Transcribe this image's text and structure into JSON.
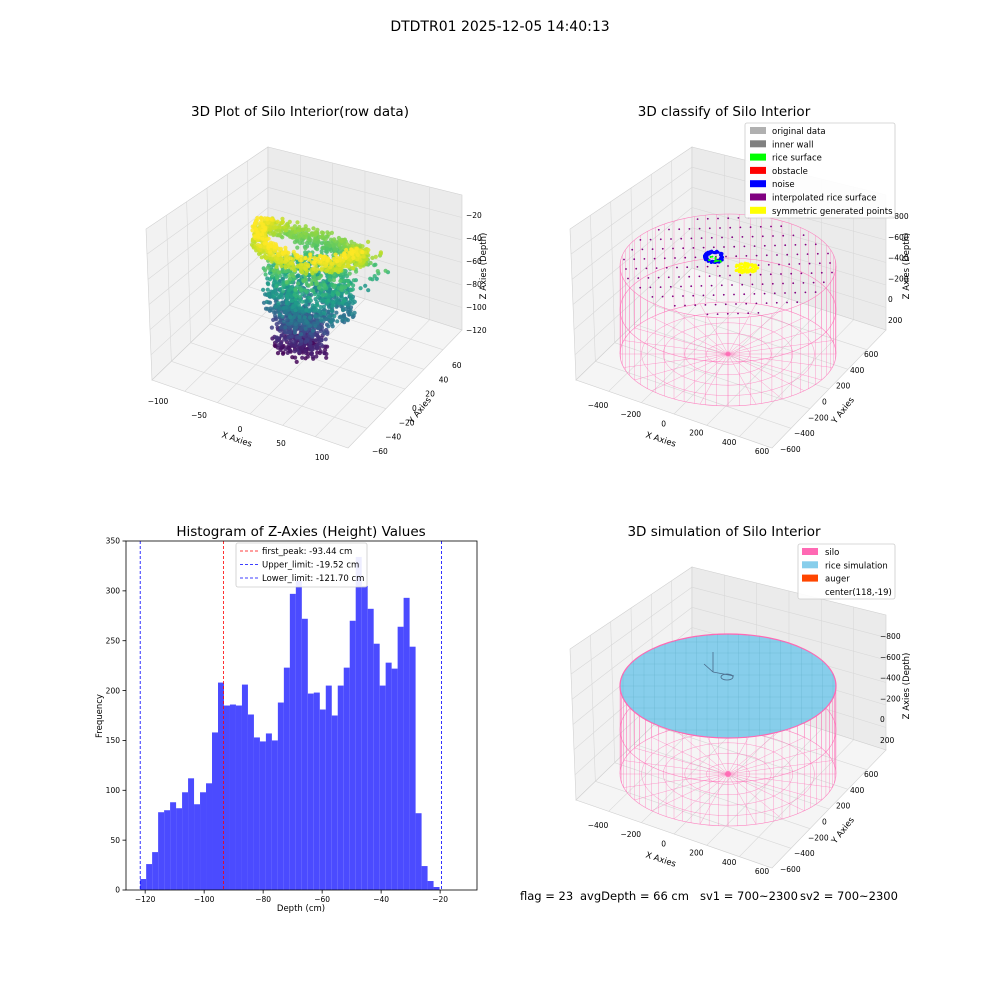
{
  "figure": {
    "suptitle": "DTDTR01 2025-12-05 14:40:13",
    "status": {
      "flag": "flag = 23",
      "avg_depth": "avgDepth = 66 cm",
      "sv1": "sv1 = 700~2300",
      "sv2": "sv2 = 700~2300"
    },
    "colors": {
      "histogram": "#4b4bff",
      "first_peak_line": "#ff0000",
      "limit_lines": "#0000ff",
      "silo_mesh": "#ff69b4",
      "rice_simulation": "#87ceeb"
    }
  },
  "chart_data": [
    {
      "type": "scatter",
      "projection": "3d",
      "title": "3D Plot of Silo Interior(row data)",
      "xlabel": "X Axies",
      "ylabel": "Y Axies",
      "zlabel": "Z Axies (Depth)",
      "x_ticks": [
        "−100",
        "−50",
        "0",
        "50",
        "100"
      ],
      "y_ticks": [
        "−60",
        "−40",
        "−20",
        "0",
        "20",
        "40",
        "60"
      ],
      "z_ticks": [
        "−120",
        "−100",
        "−80",
        "−60",
        "−40",
        "−20"
      ],
      "xlim": [
        -110,
        110
      ],
      "ylim": [
        -65,
        65
      ],
      "zlim": [
        -128,
        -15
      ],
      "colormap": "viridis",
      "grid": true
    },
    {
      "type": "scatter",
      "projection": "3d",
      "title": "3D classify of Silo Interior",
      "xlabel": "X Axies",
      "ylabel": "Y Axies",
      "zlabel": "Z Axies (Depth)",
      "x_ticks": [
        "−400",
        "−200",
        "0",
        "200",
        "400",
        "600"
      ],
      "y_ticks": [
        "−600",
        "−400",
        "−200",
        "0",
        "200",
        "400",
        "600"
      ],
      "z_ticks": [
        "−800",
        "−600",
        "−400",
        "−200",
        "0",
        "200"
      ],
      "legend": [
        {
          "label": "original data",
          "color": "#b0b0b0"
        },
        {
          "label": "inner wall",
          "color": "#808080"
        },
        {
          "label": "rice surface",
          "color": "#00ff00"
        },
        {
          "label": "obstacle",
          "color": "#ff0000"
        },
        {
          "label": "noise",
          "color": "#0000ff"
        },
        {
          "label": "interpolated rice surface",
          "color": "#800080"
        },
        {
          "label": "symmetric generated points",
          "color": "#ffff00"
        }
      ],
      "legend_position": "upper right",
      "grid": true
    },
    {
      "type": "bar",
      "subtype": "histogram",
      "title": "Histogram of Z-Axies (Height) Values",
      "xlabel": "Depth (cm)",
      "ylabel": "Frequency",
      "x_ticks": [
        "−120",
        "−100",
        "−80",
        "−60",
        "−40",
        "−20"
      ],
      "y_ticks": [
        "0",
        "50",
        "100",
        "150",
        "200",
        "250",
        "300",
        "350"
      ],
      "xlim": [
        -126.5,
        -7.5
      ],
      "ylim": [
        0,
        350
      ],
      "bin_start": -121.7,
      "bin_width": 2.03,
      "values": [
        11,
        26,
        38,
        78,
        80,
        88,
        82,
        98,
        112,
        86,
        98,
        107,
        158,
        208,
        185,
        186,
        185,
        206,
        176,
        153,
        149,
        157,
        150,
        188,
        223,
        297,
        310,
        272,
        197,
        198,
        181,
        205,
        175,
        205,
        223,
        270,
        334,
        305,
        282,
        247,
        205,
        228,
        222,
        264,
        293,
        244,
        77,
        24,
        9,
        3
      ],
      "lines": [
        {
          "label": "first_peak: -93.44 cm",
          "x": -93.44,
          "color": "#ff0000"
        },
        {
          "label": "Upper_limit: -19.52 cm",
          "x": -19.52,
          "color": "#0000ff"
        },
        {
          "label": "Lower_limit: -121.70 cm",
          "x": -121.7,
          "color": "#0000ff"
        }
      ],
      "legend_position": "upper center",
      "grid": false
    },
    {
      "type": "scatter",
      "projection": "3d",
      "title": "3D simulation of Silo Interior",
      "xlabel": "X Axies",
      "ylabel": "Y Axies",
      "zlabel": "Z Axies (Depth)",
      "x_ticks": [
        "−400",
        "−200",
        "0",
        "200",
        "400",
        "600"
      ],
      "y_ticks": [
        "−600",
        "−400",
        "−200",
        "0",
        "200",
        "400",
        "600"
      ],
      "z_ticks": [
        "−800",
        "−600",
        "−400",
        "−200",
        "0",
        "200"
      ],
      "legend": [
        {
          "label": "silo",
          "color": "#ff69b4"
        },
        {
          "label": "rice simulation",
          "color": "#87ceeb"
        },
        {
          "label": "auger",
          "color": "#ff4500"
        },
        {
          "label": "center(118,-19)",
          "color": ""
        }
      ],
      "legend_position": "upper right",
      "grid": true
    }
  ]
}
